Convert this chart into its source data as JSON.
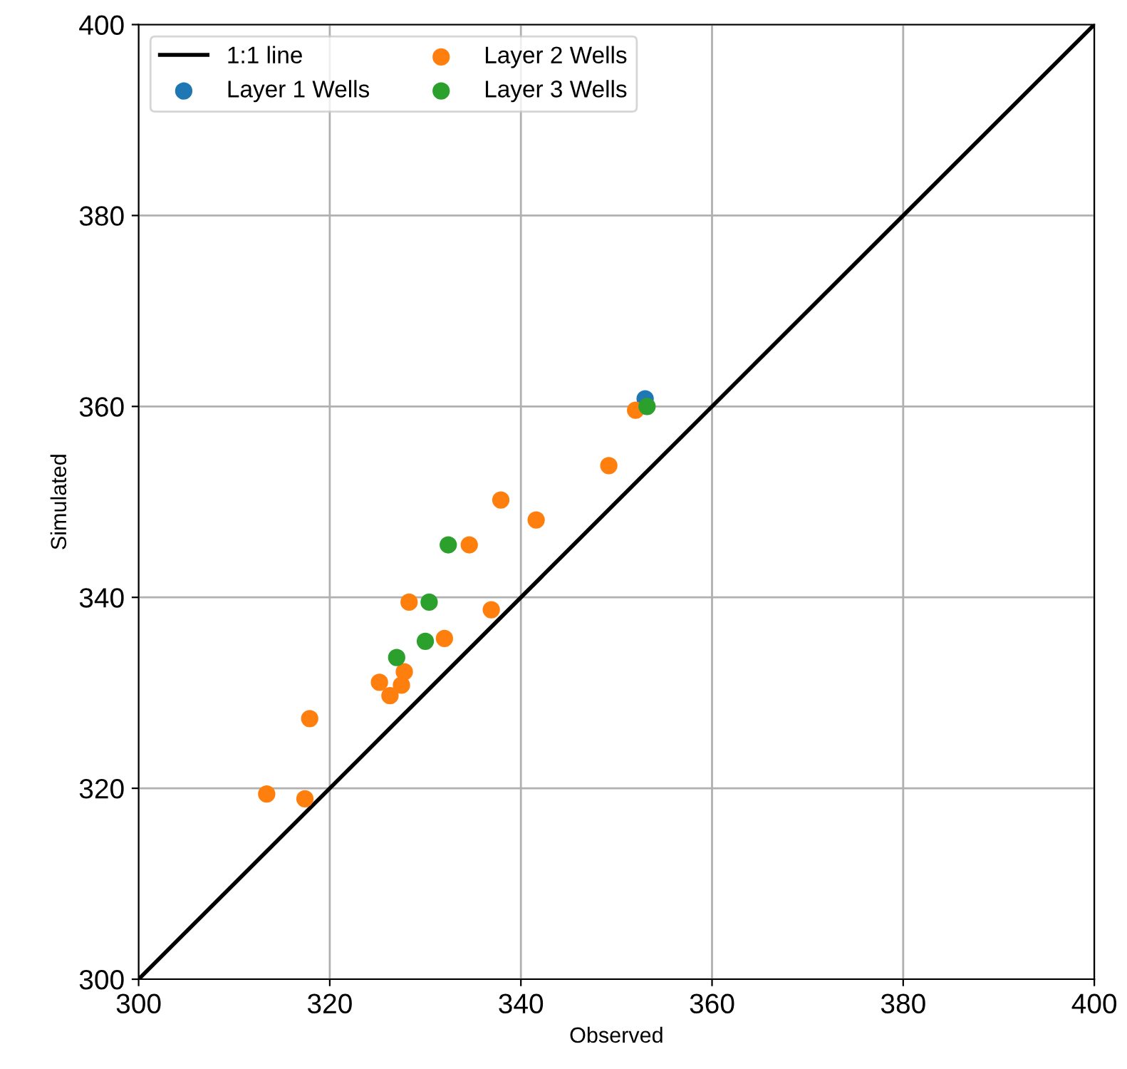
{
  "chart_data": {
    "type": "scatter",
    "xlabel": "Observed",
    "ylabel": "Simulated",
    "xlim": [
      300,
      400
    ],
    "ylim": [
      300,
      400
    ],
    "xticks": [
      300,
      320,
      340,
      360,
      380,
      400
    ],
    "yticks": [
      300,
      320,
      340,
      360,
      380,
      400
    ],
    "grid": true,
    "legend": "top left",
    "series": [
      {
        "name": "1:1 line",
        "type": "line",
        "marker": "none",
        "color": "#000000",
        "x": [
          300,
          400
        ],
        "values": [
          300,
          400
        ]
      },
      {
        "name": "Layer 1 Wells",
        "marker": "circle",
        "color": "#1f77b4",
        "x": [
          353.0
        ],
        "values": [
          360.8
        ]
      },
      {
        "name": "Layer 2 Wells",
        "marker": "circle",
        "color": "#ff7f0e",
        "x": [
          352.0,
          349.2,
          337.9,
          341.6,
          334.6,
          328.3,
          336.9,
          332.0,
          327.8,
          325.2,
          327.5,
          326.3,
          317.9,
          313.4,
          317.4
        ],
        "values": [
          359.6,
          353.8,
          350.2,
          348.1,
          345.5,
          339.5,
          338.7,
          335.7,
          332.2,
          331.1,
          330.8,
          329.7,
          327.3,
          319.4,
          318.9
        ]
      },
      {
        "name": "Layer 3 Wells",
        "marker": "circle",
        "color": "#2ca02c",
        "x": [
          353.2,
          332.4,
          330.4,
          330.0,
          327.0
        ],
        "values": [
          360.0,
          345.5,
          339.5,
          335.4,
          333.7
        ]
      }
    ]
  }
}
